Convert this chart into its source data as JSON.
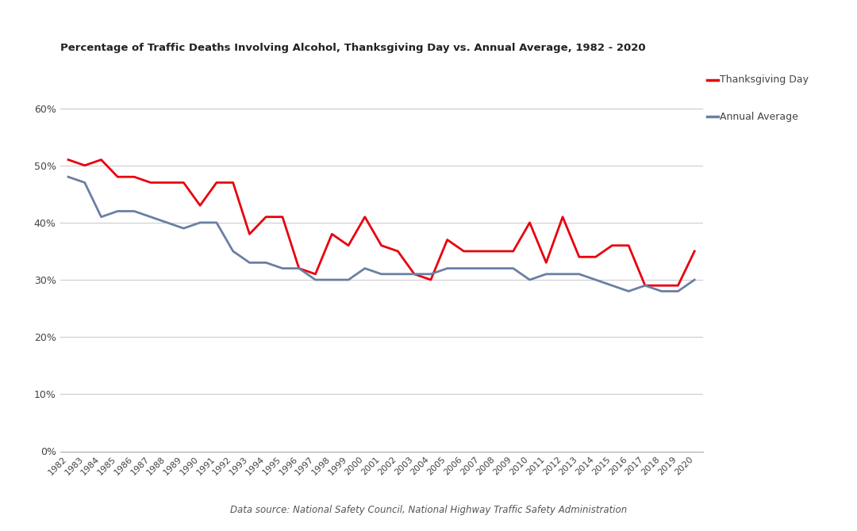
{
  "title": "Percentage of Traffic Deaths Involving Alcohol, Thanksgiving Day vs. Annual Average, 1982 - 2020",
  "years": [
    1982,
    1983,
    1984,
    1985,
    1986,
    1987,
    1988,
    1989,
    1990,
    1991,
    1992,
    1993,
    1994,
    1995,
    1996,
    1997,
    1998,
    1999,
    2000,
    2001,
    2002,
    2003,
    2004,
    2005,
    2006,
    2007,
    2008,
    2009,
    2010,
    2011,
    2012,
    2013,
    2014,
    2015,
    2016,
    2017,
    2018,
    2019,
    2020
  ],
  "thanksgiving": [
    0.51,
    0.5,
    0.51,
    0.48,
    0.48,
    0.47,
    0.47,
    0.47,
    0.43,
    0.47,
    0.47,
    0.38,
    0.41,
    0.41,
    0.32,
    0.31,
    0.38,
    0.36,
    0.41,
    0.36,
    0.35,
    0.31,
    0.3,
    0.37,
    0.35,
    0.35,
    0.35,
    0.35,
    0.4,
    0.33,
    0.41,
    0.34,
    0.34,
    0.36,
    0.36,
    0.29,
    0.29,
    0.29,
    0.35
  ],
  "annual_avg": [
    0.48,
    0.47,
    0.41,
    0.42,
    0.42,
    0.41,
    0.4,
    0.39,
    0.4,
    0.4,
    0.35,
    0.33,
    0.33,
    0.32,
    0.32,
    0.3,
    0.3,
    0.3,
    0.32,
    0.31,
    0.31,
    0.31,
    0.31,
    0.32,
    0.32,
    0.32,
    0.32,
    0.32,
    0.3,
    0.31,
    0.31,
    0.31,
    0.3,
    0.29,
    0.28,
    0.29,
    0.28,
    0.28,
    0.3
  ],
  "thanksgiving_color": "#e8000d",
  "annual_avg_color": "#6b7fa3",
  "background_color": "#ffffff",
  "grid_color": "#cccccc",
  "title_fontsize": 9.5,
  "legend_thanksgiving": "Thanksgiving Day",
  "legend_annual": "Annual Average",
  "source_text": "Data source: National Safety Council, National Highway Traffic Safety Administration",
  "ylim": [
    0.0,
    0.65
  ],
  "yticks": [
    0.0,
    0.1,
    0.2,
    0.3,
    0.4,
    0.5,
    0.6
  ]
}
